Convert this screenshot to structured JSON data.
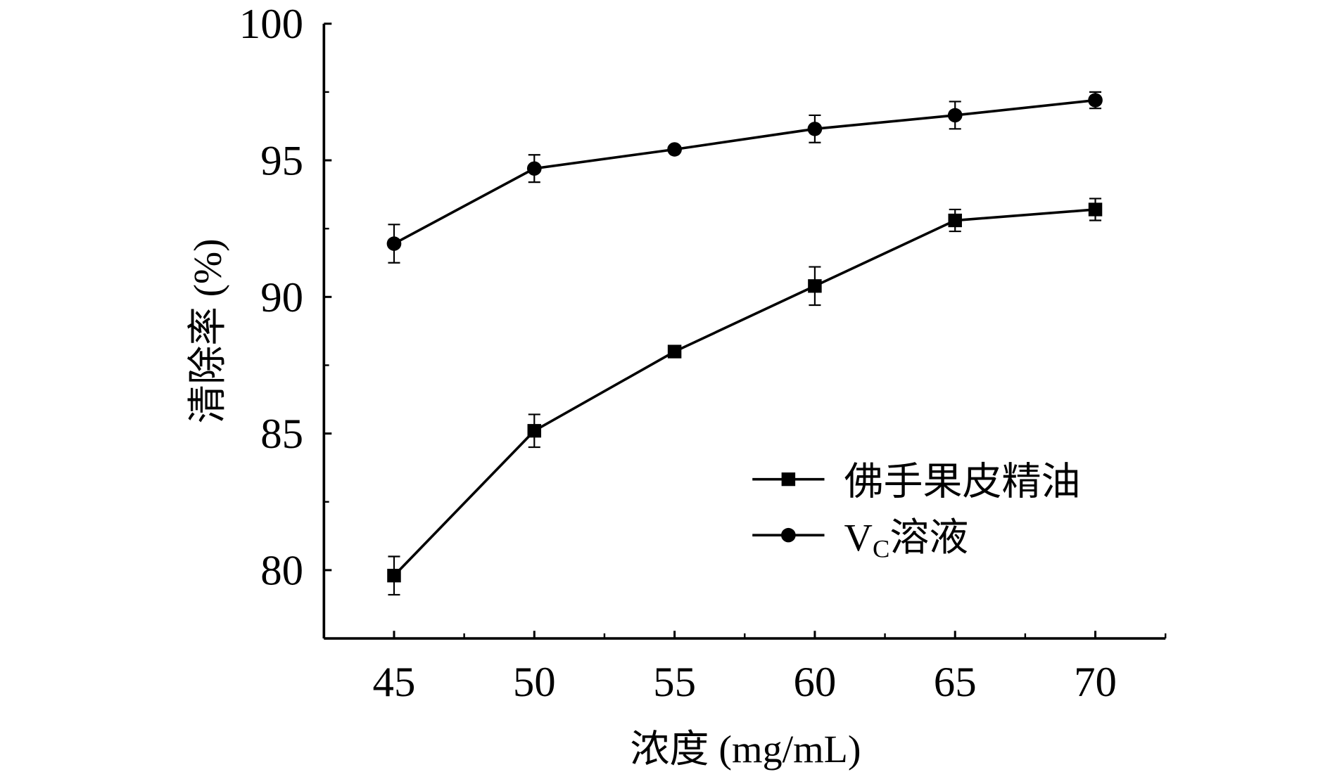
{
  "chart_data": {
    "type": "line",
    "title": "",
    "xlabel": "浓度 (mg/mL)",
    "ylabel": "清除率 (%)",
    "xlim": [
      42.5,
      72.5
    ],
    "ylim": [
      77.5,
      100
    ],
    "xticks": [
      45,
      50,
      55,
      60,
      65,
      70
    ],
    "yticks": [
      80,
      85,
      90,
      95,
      100
    ],
    "grid": false,
    "legend_position": "lower-right",
    "x": [
      45,
      50,
      55,
      60,
      65,
      70
    ],
    "series": [
      {
        "name": "佛手果皮精油",
        "marker": "square",
        "values": [
          79.8,
          85.1,
          88.0,
          90.4,
          92.8,
          93.2
        ],
        "errors": [
          0.7,
          0.6,
          0.1,
          0.7,
          0.4,
          0.4
        ]
      },
      {
        "name": "VC溶液",
        "name_main": "V",
        "name_sub": "C",
        "name_rest": "溶液",
        "marker": "circle",
        "values": [
          91.95,
          94.7,
          95.4,
          96.15,
          96.65,
          97.2
        ],
        "errors": [
          0.7,
          0.5,
          0.1,
          0.5,
          0.5,
          0.3
        ]
      }
    ],
    "color": "#000000"
  }
}
